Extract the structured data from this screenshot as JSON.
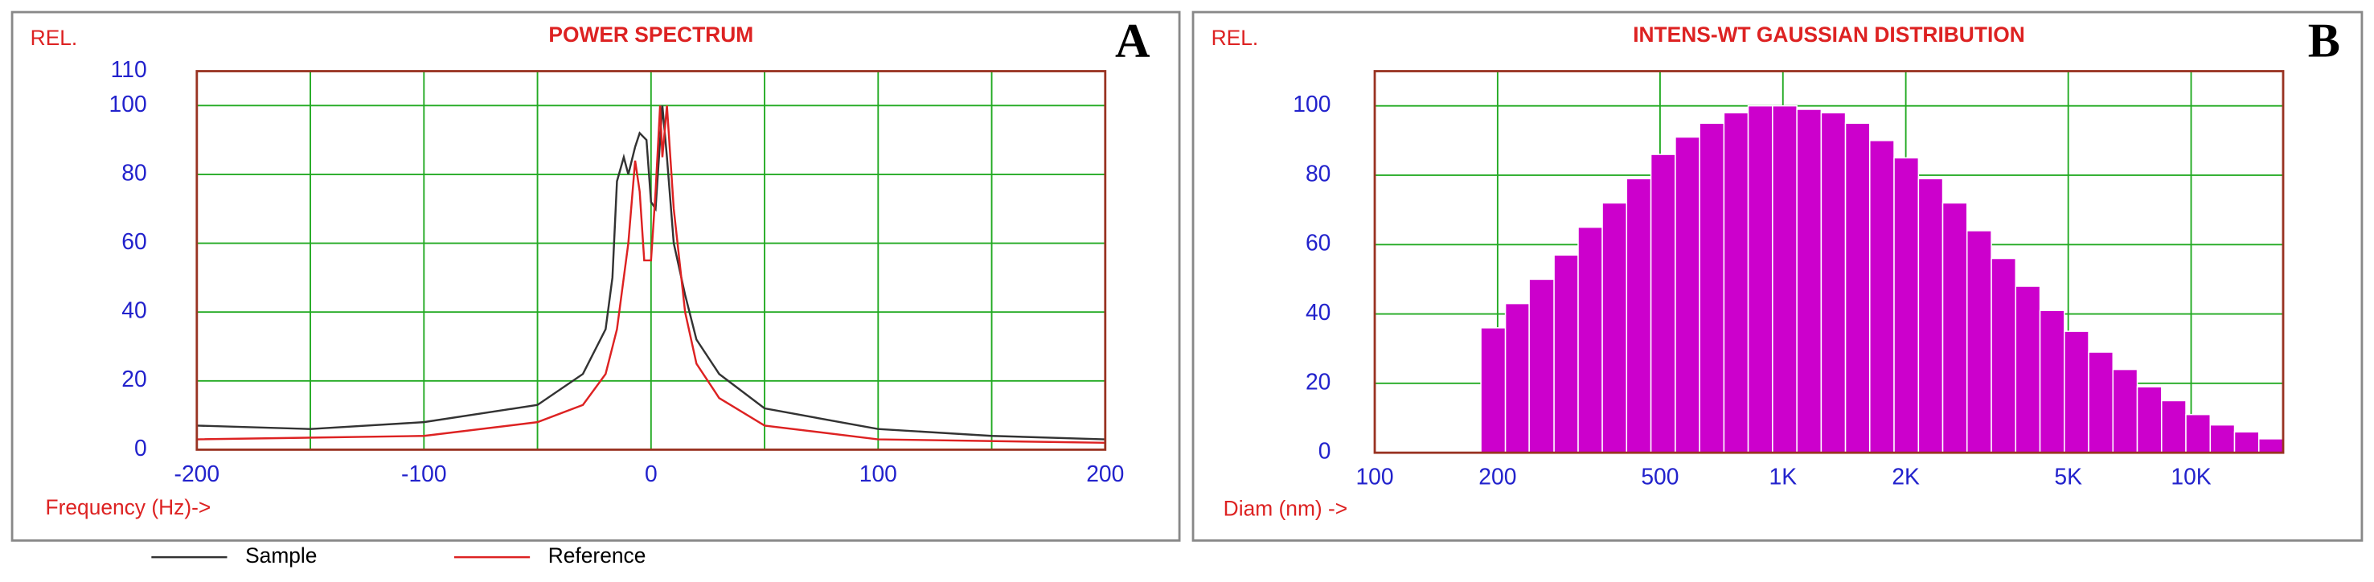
{
  "chart_data": [
    {
      "type": "line",
      "title": "POWER SPECTRUM",
      "panel_label": "A",
      "ylabel": "REL.",
      "xlabel": "Frequency (Hz)->",
      "xlim": [
        -200,
        200
      ],
      "xticks": [
        -200,
        -100,
        0,
        100,
        200
      ],
      "xgrid": [
        -200,
        -150,
        -100,
        -50,
        0,
        50,
        100,
        150,
        200
      ],
      "ylim": [
        0,
        110
      ],
      "yticks": [
        0,
        20,
        40,
        60,
        80,
        100,
        110
      ],
      "grid": true,
      "legend": "bottom",
      "series": [
        {
          "name": "Sample",
          "color": "#333333",
          "x": [
            -200,
            -150,
            -100,
            -50,
            -30,
            -20,
            -17,
            -15,
            -12,
            -10,
            -7,
            -5,
            -2,
            0,
            2,
            5,
            7,
            10,
            15,
            20,
            30,
            50,
            100,
            150,
            200
          ],
          "values": [
            7,
            6,
            8,
            13,
            22,
            35,
            50,
            78,
            85,
            80,
            88,
            92,
            90,
            72,
            70,
            100,
            85,
            60,
            45,
            32,
            22,
            12,
            6,
            4,
            3
          ]
        },
        {
          "name": "Reference",
          "color": "#dd2222",
          "x": [
            -200,
            -100,
            -50,
            -30,
            -20,
            -15,
            -10,
            -7,
            -5,
            -3,
            0,
            2,
            4,
            5,
            7,
            10,
            15,
            20,
            30,
            50,
            100,
            200
          ],
          "values": [
            3,
            4,
            8,
            13,
            22,
            35,
            60,
            84,
            75,
            55,
            55,
            75,
            100,
            85,
            100,
            70,
            40,
            25,
            15,
            7,
            3,
            2
          ]
        }
      ]
    },
    {
      "type": "histogram",
      "title": "INTENS-WT GAUSSIAN DISTRIBUTION",
      "panel_label": "B",
      "ylabel": "REL.",
      "xlabel": "Diam (nm) ->",
      "xscale": "log",
      "xlim": [
        100,
        16807
      ],
      "xticks": [
        100,
        200,
        500,
        {
          "value": 1000,
          "label": "1K"
        },
        {
          "value": 2000,
          "label": "2K"
        },
        {
          "value": 5000,
          "label": "5K"
        },
        {
          "value": 10000,
          "label": "10K"
        }
      ],
      "ylim": [
        0,
        110
      ],
      "yticks": [
        0,
        20,
        40,
        60,
        80,
        100
      ],
      "grid": true,
      "color": "#cc00cc",
      "bins": [
        182,
        209,
        239,
        275,
        315,
        361,
        414,
        475,
        545,
        625,
        717,
        822,
        943,
        1082,
        1241,
        1423,
        1632,
        1872,
        2148,
        2463,
        2825,
        3241,
        3717,
        4264,
        4891,
        5610,
        6434,
        7380,
        8465,
        9710,
        11137,
        12775,
        14653,
        16807
      ],
      "values": [
        36,
        43,
        50,
        57,
        65,
        72,
        79,
        86,
        91,
        95,
        98,
        100,
        100,
        99,
        98,
        95,
        90,
        85,
        79,
        72,
        64,
        56,
        48,
        41,
        35,
        29,
        24,
        19,
        15,
        11,
        8,
        6,
        4
      ]
    }
  ]
}
